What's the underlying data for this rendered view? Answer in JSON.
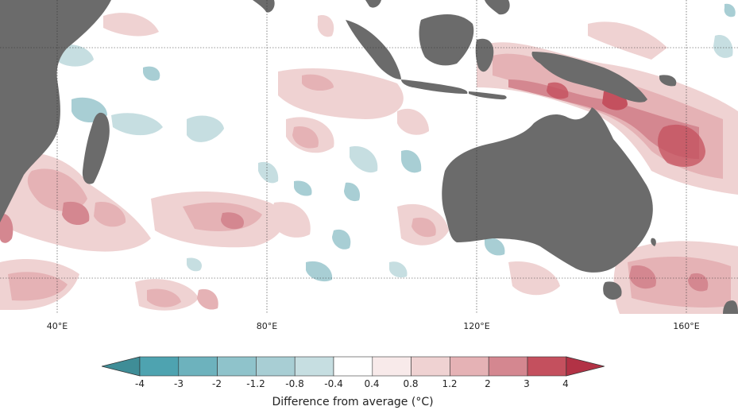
{
  "map": {
    "longitude_labels": [
      "40°E",
      "80°E",
      "120°E",
      "160°E"
    ],
    "land_color": "#6b6b6b",
    "ocean_color": "#ffffff",
    "gridlines": "dotted"
  },
  "legend": {
    "title": "Difference from average (°C)",
    "tick_labels": [
      "-4",
      "-3",
      "-2",
      "-1.2",
      "-0.8",
      "-0.4",
      "0.4",
      "0.8",
      "1.2",
      "2",
      "3",
      "4"
    ],
    "bins": [
      {
        "range": "< -4",
        "color": "#3f8d97"
      },
      {
        "range": "-4 to -3",
        "color": "#4ea3b0"
      },
      {
        "range": "-3 to -2",
        "color": "#6db2bd"
      },
      {
        "range": "-2 to -1.2",
        "color": "#8fc3cb"
      },
      {
        "range": "-1.2 to -0.8",
        "color": "#a8ced4"
      },
      {
        "range": "-0.8 to -0.4",
        "color": "#c6dee1"
      },
      {
        "range": "-0.4 to 0.4",
        "color": "#ffffff"
      },
      {
        "range": "0.4 to 0.8",
        "color": "#f8eaea"
      },
      {
        "range": "0.8 to 1.2",
        "color": "#efd2d2"
      },
      {
        "range": "1.2 to 2",
        "color": "#e5b2b5"
      },
      {
        "range": "2 to 3",
        "color": "#d48790"
      },
      {
        "range": "3 to 4",
        "color": "#c4505e"
      },
      {
        "range": "> 4",
        "color": "#b23245"
      }
    ]
  }
}
